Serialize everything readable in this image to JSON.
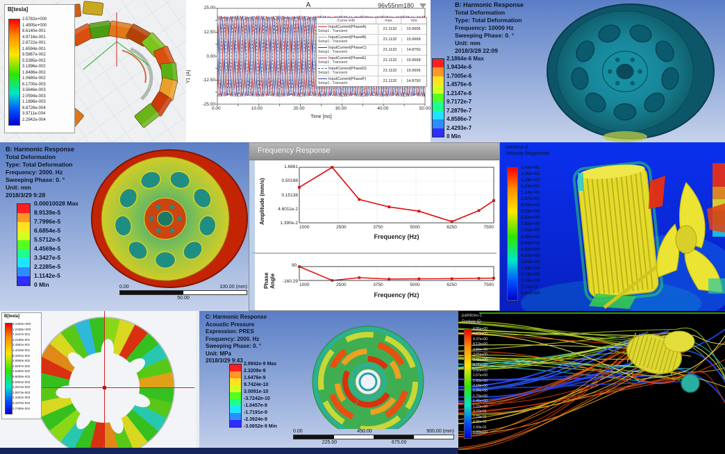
{
  "colors": {
    "accent_red": "#e01010",
    "ansys_bands": [
      "#ff1f1f",
      "#ff9726",
      "#ffe21f",
      "#d3ff1f",
      "#54ff1f",
      "#1fff8e",
      "#1fe4ff",
      "#2e8cff",
      "#2e2eff"
    ]
  },
  "maxwell_top": {
    "legend_title": "B[tesla]",
    "values": [
      "2.5782e+000",
      "1.4905e+000",
      "8.6140e-001",
      "4.9716e-001",
      "2.8722e-001",
      "1.6594e-001",
      "9.5867e-002",
      "5.5385e-002",
      "3.1996e-002",
      "1.8486e-002",
      "1.0680e-002",
      "6.1700e-003",
      "3.5646e-003",
      "2.0594e-003",
      "1.1896e-003",
      "6.8726e-004",
      "3.9711e-004",
      "2.2942e-004"
    ]
  },
  "current_plot": {
    "window_title": "A",
    "plot_title": "96v55nm180",
    "ylabel": "Y1 [A]",
    "xlabel": "Time [ms]",
    "yticks": [
      "25.00",
      "12.50",
      "0.00",
      "-12.50",
      "-25.00"
    ],
    "xticks": [
      "0.00",
      "10.00",
      "20.00",
      "30.00",
      "40.00",
      "50.00"
    ],
    "legend_headers": [
      "Curve Info",
      "max",
      "rms"
    ],
    "legend_rows": [
      {
        "name": "InputCurrent(PhaseA)",
        "setup": "Setup1 : Transient",
        "max": "21.1132",
        "rms": "15.0606"
      },
      {
        "name": "InputCurrent(PhaseB)",
        "setup": "Setup1 : Transient",
        "max": "21.1132",
        "rms": "15.0668"
      },
      {
        "name": "InputCurrent(PhaseC)",
        "setup": "Setup1 : Transient",
        "max": "21.1132",
        "rms": "14.8750"
      },
      {
        "name": "InputCurrent(PhaseE)",
        "setup": "Setup1 : Transient",
        "max": "21.1132",
        "rms": "15.0668"
      },
      {
        "name": "InputCurrent(PhaseD)",
        "setup": "Setup1 : Transient",
        "max": "21.1132",
        "rms": "15.0606"
      },
      {
        "name": "InputCurrent(PhaseF)",
        "setup": "Setup1 : Transient",
        "max": "21.1132",
        "rms": "14.8750"
      }
    ]
  },
  "harmonic_top_right": {
    "lines": [
      "B: Harmonic Response",
      "Total Deformation",
      "Type: Total Deformation",
      "Frequency: 10000 Hz",
      "Sweeping Phase: 0. °",
      "Unit: mm",
      "2018/3/28 22:09"
    ],
    "colorbar": [
      "2.1864e-6 Max",
      "1.9434e-6",
      "1.7005e-6",
      "1.4576e-6",
      "1.2147e-6",
      "9.7172e-7",
      "7.2879e-7",
      "4.8586e-7",
      "2.4293e-7",
      "0 Min"
    ]
  },
  "harmonic_mid_left": {
    "lines": [
      "B: Harmonic Response",
      "Total Deformation",
      "Type: Total Deformation",
      "Frequency: 2000. Hz",
      "Sweeping Phase: 0. °",
      "Unit: mm",
      "2018/3/29 9:28"
    ],
    "colorbar": [
      "0.00010028 Max",
      "8.9139e-5",
      "7.7996e-5",
      "6.6854e-5",
      "5.5712e-5",
      "4.4569e-5",
      "3.3427e-5",
      "2.2285e-5",
      "1.1142e-5",
      "0 Min"
    ],
    "ruler": {
      "top_left": "0.00",
      "top_right": "100.00 (mm)",
      "bottom_center": "50.00"
    }
  },
  "freq_response": {
    "window_title": "Frequency Response",
    "amplitude": {
      "ylabel": "Amplitude (mm/s)",
      "yticks": [
        "1.6881",
        "0.50198",
        "0.15138",
        "4.6011e-2",
        "1.390e-2"
      ],
      "xticks": [
        "1000",
        "2500",
        "3750",
        "5000",
        "6250",
        "7500"
      ],
      "xlabel": "Frequency (Hz)"
    },
    "phase": {
      "ylabel": "Phase Angle",
      "yticks": [
        "90.",
        "-160.29"
      ],
      "xticks": [
        "1000",
        "2500",
        "3750",
        "5000",
        "6250",
        "7500"
      ],
      "xlabel": "Frequency (Hz)"
    }
  },
  "cfd_contour": {
    "legend_title1": "contour-2",
    "legend_title2": "Velocity Magnitude",
    "values": [
      "1.42e+01",
      "1.35e+01",
      "1.28e+01",
      "1.21e+01",
      "1.14e+01",
      "1.07e+01",
      "9.96e+00",
      "9.25e+00",
      "8.53e+00",
      "7.82e+00",
      "7.11e+00",
      "6.40e+00",
      "5.69e+00",
      "4.98e+00",
      "4.27e+00",
      "3.56e+00",
      "2.84e+00",
      "2.13e+00",
      "1.42e+00",
      "7.11e-01",
      "0.00e+00"
    ]
  },
  "maxwell_bottom": {
    "legend_title": "B[tesla]",
    "values": [
      "2.1353e+000",
      "1.2438e+000",
      "7.2447e-001",
      "4.2199e-001",
      "2.4581e-001",
      "1.4318e-001",
      "8.3401e-002",
      "4.8580e-002",
      "2.8297e-002",
      "1.6482e-002",
      "9.6005e-003",
      "5.5922e-003",
      "3.2574e-003",
      "1.8973e-003",
      "1.1051e-003",
      "6.4370e-004",
      "3.7495e-004"
    ]
  },
  "acoustic": {
    "lines": [
      "C: Harmonic Response",
      "Acoustic Pressure",
      "Expression: PRES",
      "Frequency: 2000. Hz",
      "Sweeping Phase: 0. °",
      "Unit: MPa",
      "2018/3/29 9:43"
    ],
    "colorbar": [
      "2.9942e-9 Max",
      "2.3209e-9",
      "1.6476e-9",
      "9.7424e-10",
      "3.0091e-10",
      "-3.7242e-10",
      "-1.0457e-9",
      "-1.7191e-9",
      "-2.3924e-9",
      "-3.0652e-9 Min"
    ],
    "ruler": {
      "top": [
        "0.00",
        "450.00",
        "900.00 (mm)"
      ],
      "bottom": [
        "225.00",
        "675.00"
      ]
    }
  },
  "pathlines": {
    "legend_title1": "pathlines-1",
    "legend_title2": "Particle ID",
    "values": [
      "4.86e+00",
      "4.62e+00",
      "4.37e+00",
      "4.13e+00",
      "3.89e+00",
      "3.65e+00",
      "3.40e+00",
      "3.16e+00",
      "2.92e+00",
      "2.67e+00",
      "2.43e+00",
      "2.19e+00",
      "1.94e+00",
      "1.70e+00",
      "1.46e+00",
      "1.22e+00",
      "9.72e-01",
      "7.29e-01",
      "4.86e-01",
      "2.43e-01",
      "0.00e+00"
    ]
  },
  "chart_data": [
    {
      "type": "line",
      "name": "input_currents",
      "title": "96v55nm180",
      "xlabel": "Time [ms]",
      "ylabel": "Y1 [A]",
      "xlim": [
        0,
        50
      ],
      "ylim": [
        -25,
        25
      ],
      "series": [
        {
          "name": "InputCurrent(PhaseA)",
          "amplitude": 21.1132,
          "period_ms": 2.5,
          "phase_deg": 0,
          "color": "#c23030",
          "dash": "solid"
        },
        {
          "name": "InputCurrent(PhaseB)",
          "amplitude": 21.1132,
          "period_ms": 2.5,
          "phase_deg": 60,
          "color": "#8694c8",
          "dash": "solid"
        },
        {
          "name": "InputCurrent(PhaseC)",
          "amplitude": 21.1132,
          "period_ms": 2.5,
          "phase_deg": 120,
          "color": "#2c3e8c",
          "dash": "solid"
        },
        {
          "name": "InputCurrent(PhaseE)",
          "amplitude": 21.1132,
          "period_ms": 2.5,
          "phase_deg": 180,
          "color": "#c23030",
          "dash": "solid"
        },
        {
          "name": "InputCurrent(PhaseD)",
          "amplitude": 21.1132,
          "period_ms": 2.5,
          "phase_deg": 240,
          "color": "#4a5480",
          "dash": "dashed"
        },
        {
          "name": "InputCurrent(PhaseF)",
          "amplitude": 21.1132,
          "period_ms": 2.5,
          "phase_deg": 300,
          "color": "#2c3e8c",
          "dash": "solid"
        }
      ]
    },
    {
      "type": "line",
      "name": "amplitude_response",
      "xlabel": "Frequency (Hz)",
      "ylabel": "Amplitude (mm/s)",
      "yscale": "log",
      "xlim": [
        1000,
        7500
      ],
      "ylim": [
        0.0139,
        1.6881
      ],
      "x": [
        1000,
        2100,
        3000,
        4000,
        5000,
        6100,
        7000,
        7500
      ],
      "y": [
        0.3,
        1.6881,
        0.105,
        0.055,
        0.038,
        0.0155,
        0.04,
        0.095
      ],
      "color": "#e01010"
    },
    {
      "type": "line",
      "name": "phase_response",
      "xlabel": "Frequency (Hz)",
      "ylabel": "Phase Angle",
      "xlim": [
        1000,
        7500
      ],
      "ylim": [
        -160.29,
        90
      ],
      "x": [
        1000,
        2100,
        3000,
        4000,
        5000,
        6100,
        7000,
        7500
      ],
      "y": [
        90,
        -160.29,
        -110,
        -135,
        -130,
        -128,
        -122,
        -118
      ],
      "color": "#e01010"
    }
  ]
}
